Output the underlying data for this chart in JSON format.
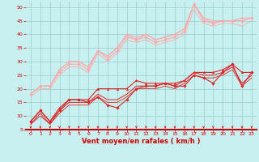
{
  "x": [
    0,
    1,
    2,
    3,
    4,
    5,
    6,
    7,
    8,
    9,
    10,
    11,
    12,
    13,
    14,
    15,
    16,
    17,
    18,
    19,
    20,
    21,
    22,
    23
  ],
  "lines": [
    {
      "y": [
        8,
        12,
        8,
        12,
        16,
        16,
        15,
        17,
        14,
        13,
        16,
        20,
        21,
        21,
        22,
        21,
        21,
        25,
        24,
        22,
        26,
        29,
        21,
        26
      ],
      "color": "#dd2222",
      "lw": 0.8,
      "marker": "D",
      "ms": 1.8,
      "zorder": 4
    },
    {
      "y": [
        8,
        12,
        8,
        13,
        16,
        16,
        16,
        20,
        20,
        20,
        20,
        23,
        22,
        22,
        22,
        22,
        23,
        26,
        26,
        26,
        27,
        29,
        26,
        26
      ],
      "color": "#dd2222",
      "lw": 0.8,
      "marker": "^",
      "ms": 1.8,
      "zorder": 4
    },
    {
      "y": [
        7,
        11,
        7,
        12,
        15,
        15,
        15,
        18,
        16,
        16,
        18,
        21,
        21,
        21,
        22,
        21,
        23,
        26,
        25,
        25,
        26,
        28,
        22,
        25
      ],
      "color": "#dd2222",
      "lw": 0.7,
      "marker": null,
      "ms": 0,
      "zorder": 2
    },
    {
      "y": [
        7,
        10,
        7,
        11,
        14,
        14,
        14,
        17,
        15,
        15,
        17,
        20,
        20,
        20,
        21,
        20,
        22,
        25,
        24,
        24,
        25,
        27,
        21,
        24
      ],
      "color": "#dd2222",
      "lw": 0.6,
      "marker": null,
      "ms": 0,
      "zorder": 2
    },
    {
      "y": [
        18,
        21,
        21,
        26,
        29,
        29,
        27,
        34,
        31,
        34,
        39,
        38,
        39,
        37,
        38,
        39,
        41,
        51,
        45,
        44,
        45,
        45,
        45,
        46
      ],
      "color": "#ffaaaa",
      "lw": 0.8,
      "marker": "D",
      "ms": 1.8,
      "zorder": 4
    },
    {
      "y": [
        18,
        21,
        21,
        27,
        30,
        30,
        28,
        34,
        32,
        35,
        40,
        39,
        40,
        38,
        39,
        40,
        42,
        51,
        46,
        45,
        45,
        45,
        46,
        46
      ],
      "color": "#ffaaaa",
      "lw": 0.8,
      "marker": "^",
      "ms": 1.8,
      "zorder": 4
    },
    {
      "y": [
        18,
        21,
        21,
        27,
        30,
        30,
        28,
        34,
        32,
        35,
        40,
        38,
        40,
        38,
        39,
        40,
        42,
        51,
        46,
        44,
        45,
        45,
        45,
        46
      ],
      "color": "#ffaaaa",
      "lw": 0.7,
      "marker": null,
      "ms": 0,
      "zorder": 2
    },
    {
      "y": [
        17,
        20,
        20,
        25,
        28,
        28,
        26,
        33,
        30,
        33,
        38,
        37,
        38,
        36,
        37,
        38,
        40,
        49,
        44,
        43,
        44,
        44,
        43,
        45
      ],
      "color": "#ffaaaa",
      "lw": 0.6,
      "marker": null,
      "ms": 0,
      "zorder": 2
    }
  ],
  "xlabel": "Vent moyen/en rafales ( km/h )",
  "xlim": [
    -0.5,
    23.5
  ],
  "ylim": [
    5,
    52
  ],
  "yticks": [
    5,
    10,
    15,
    20,
    25,
    30,
    35,
    40,
    45,
    50
  ],
  "xticks": [
    0,
    1,
    2,
    3,
    4,
    5,
    6,
    7,
    8,
    9,
    10,
    11,
    12,
    13,
    14,
    15,
    16,
    17,
    18,
    19,
    20,
    21,
    22,
    23
  ],
  "bg_color": "#c8f0f0",
  "grid_color": "#99cccc",
  "text_color": "#cc0000",
  "spine_color": "#cc0000"
}
